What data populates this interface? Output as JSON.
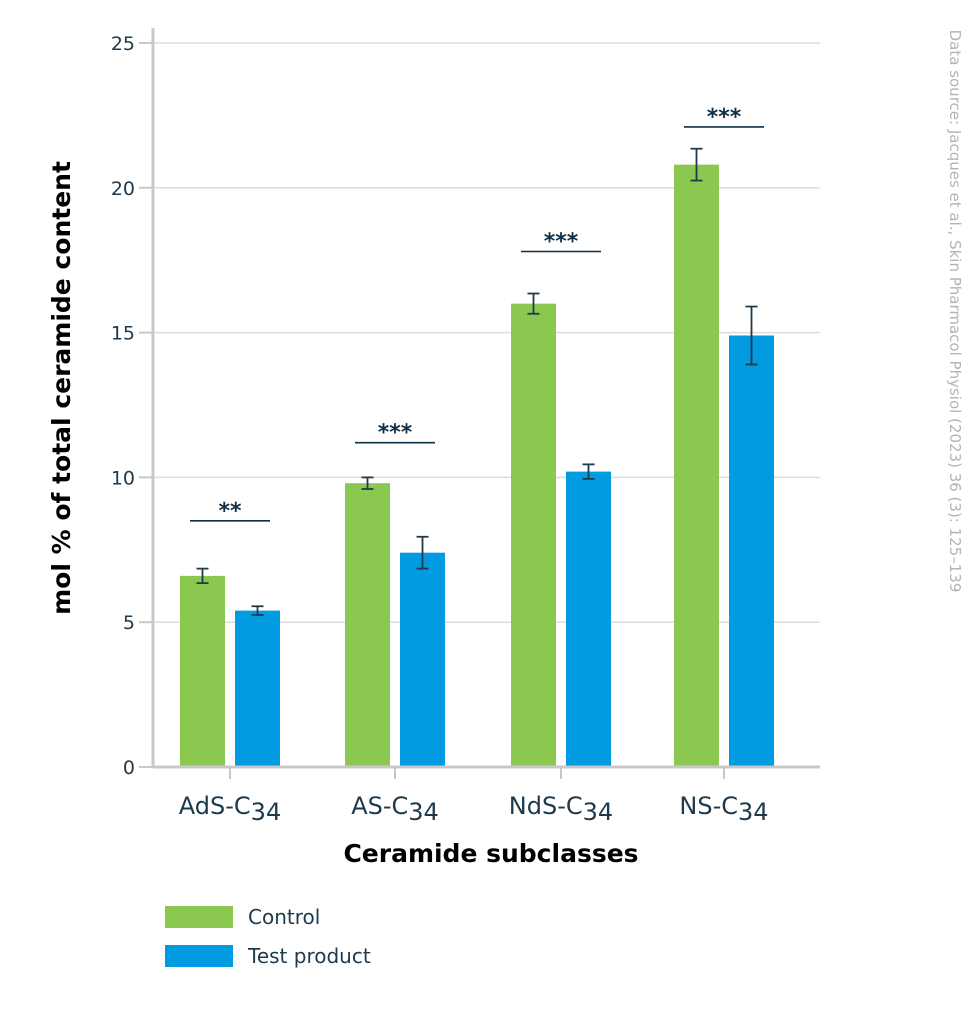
{
  "chart_data": {
    "type": "bar",
    "xlabel": "Ceramide subclasses",
    "ylabel": "mol % of total ceramide content",
    "ylim": [
      0,
      25
    ],
    "yticks": [
      0,
      5,
      10,
      15,
      20,
      25
    ],
    "grid": true,
    "legend_position": "bottom-left",
    "categories": [
      {
        "base": "AdS-C",
        "sub": "34"
      },
      {
        "base": "AS-C",
        "sub": "34"
      },
      {
        "base": "NdS-C",
        "sub": "34"
      },
      {
        "base": "NS-C",
        "sub": "34"
      }
    ],
    "series": [
      {
        "name": "Control",
        "color": "#8bc850",
        "values": [
          6.6,
          9.8,
          16.0,
          20.8
        ],
        "errors": [
          0.25,
          0.2,
          0.35,
          0.55
        ]
      },
      {
        "name": "Test product",
        "color": "#009be0",
        "values": [
          5.4,
          7.4,
          10.2,
          14.9
        ],
        "errors": [
          0.15,
          0.55,
          0.25,
          1.0
        ]
      }
    ],
    "significance": [
      {
        "label": "**",
        "y": 8.5
      },
      {
        "label": "***",
        "y": 11.2
      },
      {
        "label": "***",
        "y": 17.8
      },
      {
        "label": "***",
        "y": 22.1
      }
    ],
    "source_note": "Data source: Jacques et al., Skin Pharmacol Physiol (2023) 36 (3): 125–139"
  }
}
